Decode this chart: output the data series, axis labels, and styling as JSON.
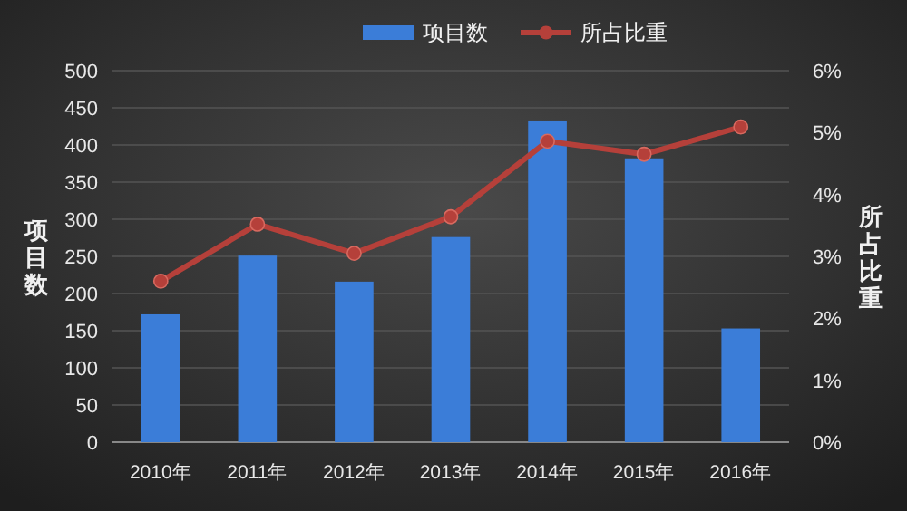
{
  "chart_data": {
    "type": "bar",
    "categories": [
      "2010年",
      "2011年",
      "2012年",
      "2013年",
      "2014年",
      "2015年",
      "2016年"
    ],
    "series": [
      {
        "name": "项目数",
        "color": "#3b7dd8",
        "values": [
          172,
          251,
          216,
          276,
          433,
          382,
          153
        ]
      },
      {
        "name": "所占比重",
        "type": "line",
        "axis": "y2",
        "color": "#b5403a",
        "values": [
          2.6,
          3.52,
          3.05,
          3.64,
          4.86,
          4.65,
          5.09
        ]
      }
    ],
    "ylabel": "项目数",
    "y2label": "所占比重",
    "ylim": [
      0,
      500
    ],
    "yticks": [
      0,
      50,
      100,
      150,
      200,
      250,
      300,
      350,
      400,
      450,
      500
    ],
    "y2lim": [
      0,
      6
    ],
    "y2ticks": [
      {
        "value": 0,
        "label": "0%"
      },
      {
        "value": 1,
        "label": "1%"
      },
      {
        "value": 2,
        "label": "2%"
      },
      {
        "value": 3,
        "label": "3%"
      },
      {
        "value": 4,
        "label": "4%"
      },
      {
        "value": 5,
        "label": "5%"
      },
      {
        "value": 6,
        "label": "6%"
      }
    ],
    "grid": "y",
    "legend": "top",
    "marker": "circle"
  }
}
